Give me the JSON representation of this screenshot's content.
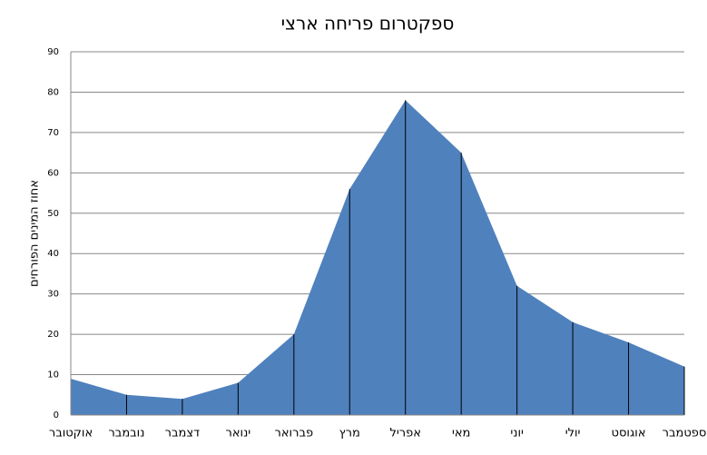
{
  "chart_data": {
    "type": "area",
    "title": "ספקטרום פריחה ארצי",
    "y_label": "אחוז המינים הפורחים",
    "categories": [
      "אוקטובר",
      "נובמבר",
      "דצמבר",
      "ינואר",
      "פברואר",
      "מרץ",
      "אפריל",
      "מאי",
      "יוני",
      "יולי",
      "אוגוסט",
      "ספטמבר"
    ],
    "values": [
      9,
      5,
      4,
      8,
      20,
      56,
      78,
      65,
      32,
      23,
      18,
      12
    ],
    "color": "#4f81bd",
    "ylim": [
      0,
      90
    ],
    "yticks": [
      0,
      10,
      20,
      30,
      40,
      50,
      60,
      70,
      80,
      90
    ],
    "grid": true
  }
}
